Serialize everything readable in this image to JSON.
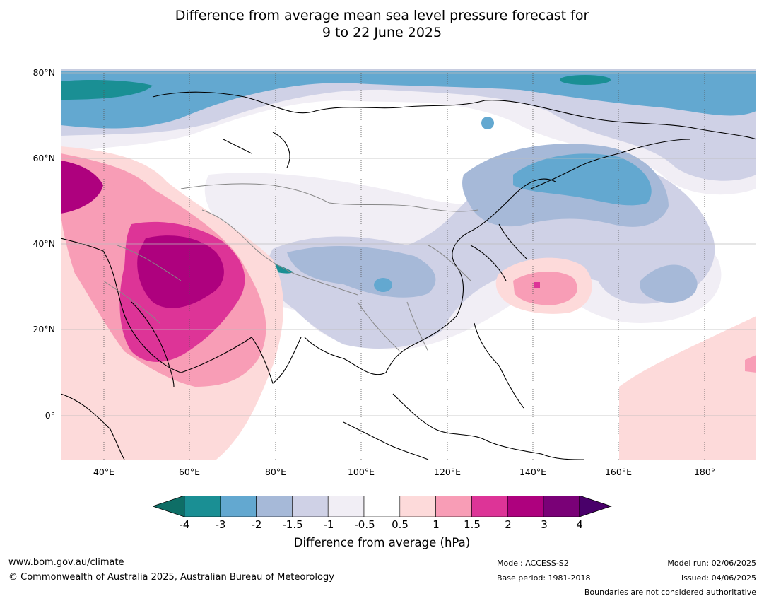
{
  "title": {
    "line1": "Difference from average mean sea level pressure forecast for",
    "line2": "9 to 22 June 2025"
  },
  "axes": {
    "lat_labels": [
      "80°N",
      "60°N",
      "40°N",
      "20°N",
      "0°"
    ],
    "lon_labels": [
      "40°E",
      "60°E",
      "80°E",
      "100°E",
      "120°E",
      "140°E",
      "160°E",
      "180°"
    ],
    "lat_range": [
      -10,
      80
    ],
    "lon_range": [
      30,
      192
    ]
  },
  "colorbar": {
    "ticks": [
      "-4",
      "-3",
      "-2",
      "-1.5",
      "-1",
      "-0.5",
      "0.5",
      "1",
      "1.5",
      "2",
      "3",
      "4"
    ],
    "colors": [
      "#0e6e66",
      "#1a8f94",
      "#63a8d0",
      "#a6b9d8",
      "#cfd1e6",
      "#f1eef5",
      "#ffffff",
      "#fddada",
      "#f89db6",
      "#dd3497",
      "#ae017e",
      "#7a0177",
      "#49006a"
    ],
    "label": "Difference from average (hPa)"
  },
  "footer": {
    "website": "www.bom.gov.au/climate",
    "copyright": "© Commonwealth of Australia 2025, Australian Bureau of Meteorology",
    "model": "Model: ACCESS-S2",
    "base_period": "Base period: 1981-2018",
    "model_run": "Model run: 02/06/2025",
    "issued": "Issued: 04/06/2025",
    "disclaimer": "Boundaries are not considered authoritative"
  }
}
